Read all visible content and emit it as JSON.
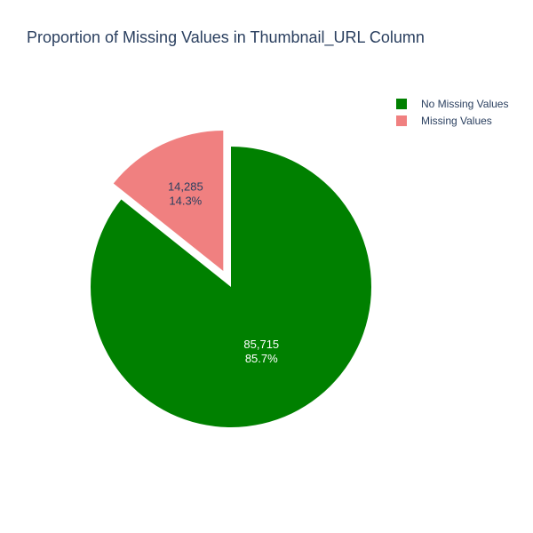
{
  "chart_data": {
    "type": "pie",
    "title": "Proportion of Missing Values in Thumbnail_URL Column",
    "slices": [
      {
        "name": "No Missing Values",
        "value": 85715,
        "value_label": "85,715",
        "percent_label": "85.7%",
        "color": "#008000",
        "pulled": false
      },
      {
        "name": "Missing Values",
        "value": 14285,
        "value_label": "14,285",
        "percent_label": "14.3%",
        "color": "#f08080",
        "pulled": true
      }
    ],
    "direction": "clockwise",
    "start": "12 o'clock",
    "legend_position": "top-right"
  }
}
